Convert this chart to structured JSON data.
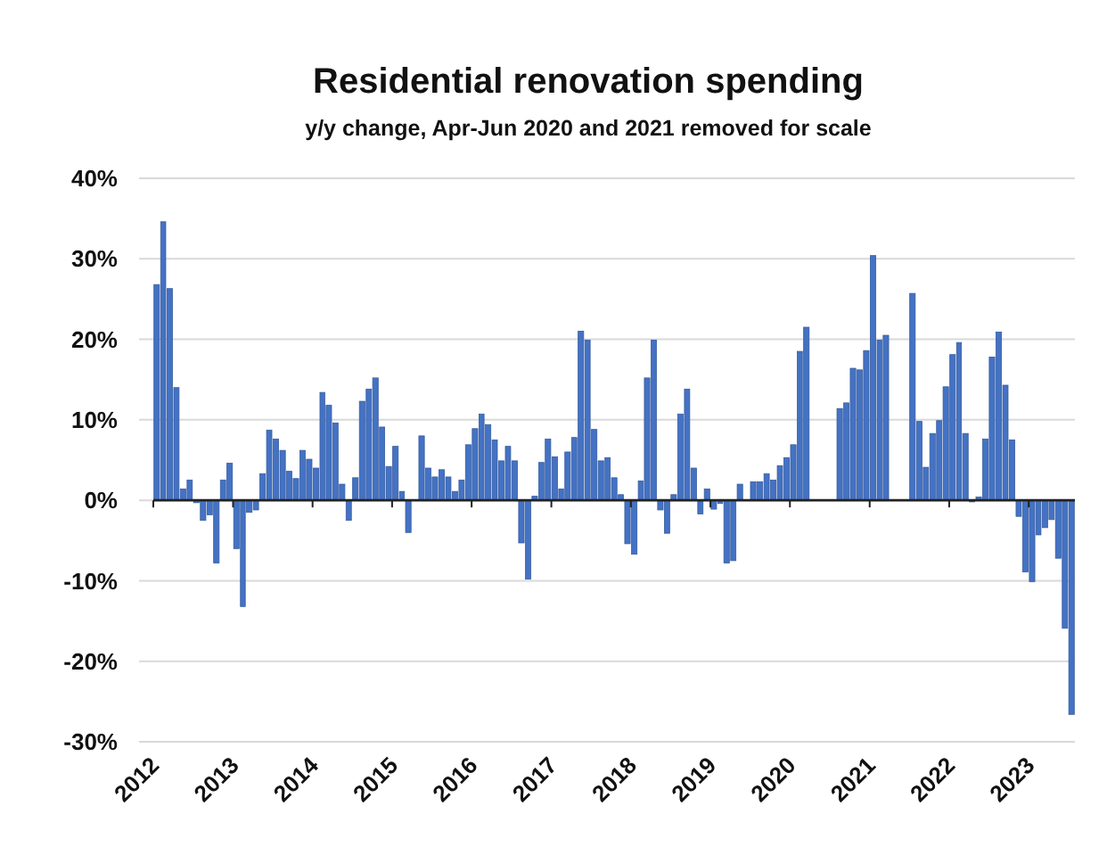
{
  "chart_data": {
    "type": "bar",
    "title": "Residential renovation spending",
    "subtitle": "y/y change, Apr-Jun 2020 and 2021 removed for scale",
    "x": [
      "2012-01",
      "2012-02",
      "2012-03",
      "2012-04",
      "2012-05",
      "2012-06",
      "2012-07",
      "2012-08",
      "2012-09",
      "2012-10",
      "2012-11",
      "2012-12",
      "2013-01",
      "2013-02",
      "2013-03",
      "2013-04",
      "2013-05",
      "2013-06",
      "2013-07",
      "2013-08",
      "2013-09",
      "2013-10",
      "2013-11",
      "2013-12",
      "2014-01",
      "2014-02",
      "2014-03",
      "2014-04",
      "2014-05",
      "2014-06",
      "2014-07",
      "2014-08",
      "2014-09",
      "2014-10",
      "2014-11",
      "2014-12",
      "2015-01",
      "2015-02",
      "2015-03",
      "2015-04",
      "2015-05",
      "2015-06",
      "2015-07",
      "2015-08",
      "2015-09",
      "2015-10",
      "2015-11",
      "2015-12",
      "2016-01",
      "2016-02",
      "2016-03",
      "2016-04",
      "2016-05",
      "2016-06",
      "2016-07",
      "2016-08",
      "2016-09",
      "2016-10",
      "2016-11",
      "2016-12",
      "2017-01",
      "2017-02",
      "2017-03",
      "2017-04",
      "2017-05",
      "2017-06",
      "2017-07",
      "2017-08",
      "2017-09",
      "2017-10",
      "2017-11",
      "2017-12",
      "2018-01",
      "2018-02",
      "2018-03",
      "2018-04",
      "2018-05",
      "2018-06",
      "2018-07",
      "2018-08",
      "2018-09",
      "2018-10",
      "2018-11",
      "2018-12",
      "2019-01",
      "2019-02",
      "2019-03",
      "2019-04",
      "2019-05",
      "2019-06",
      "2019-07",
      "2019-08",
      "2019-09",
      "2019-10",
      "2019-11",
      "2019-12",
      "2020-01",
      "2020-02",
      "2020-03",
      "2020-04",
      "2020-05",
      "2020-06",
      "2020-07",
      "2020-08",
      "2020-09",
      "2020-10",
      "2020-11",
      "2020-12",
      "2021-01",
      "2021-02",
      "2021-03",
      "2021-04",
      "2021-05",
      "2021-06",
      "2021-07",
      "2021-08",
      "2021-09",
      "2021-10",
      "2021-11",
      "2021-12",
      "2022-01",
      "2022-02",
      "2022-03",
      "2022-04",
      "2022-05",
      "2022-06",
      "2022-07",
      "2022-08",
      "2022-09",
      "2022-10",
      "2022-11",
      "2022-12",
      "2023-01",
      "2023-02",
      "2023-03",
      "2023-04",
      "2023-05",
      "2023-06",
      "2023-07"
    ],
    "values": [
      26.8,
      34.6,
      26.3,
      14.0,
      1.4,
      2.5,
      -0.3,
      -2.5,
      -1.8,
      -7.8,
      2.5,
      4.6,
      -6.0,
      -13.2,
      -1.5,
      -1.2,
      3.3,
      8.7,
      7.6,
      6.2,
      3.6,
      2.7,
      6.2,
      5.1,
      4.0,
      13.4,
      11.8,
      9.6,
      2.0,
      -2.5,
      2.8,
      12.3,
      13.8,
      15.2,
      9.1,
      4.2,
      6.7,
      1.1,
      -4.0,
      null,
      8.0,
      4.0,
      2.9,
      3.8,
      2.9,
      1.1,
      2.5,
      6.9,
      8.9,
      10.7,
      9.4,
      7.5,
      4.9,
      6.7,
      4.9,
      -5.3,
      -9.8,
      0.5,
      4.7,
      7.6,
      5.4,
      1.4,
      6.0,
      7.8,
      21.0,
      19.9,
      8.8,
      4.9,
      5.3,
      2.8,
      0.7,
      -5.4,
      -6.7,
      2.4,
      15.2,
      19.9,
      -1.2,
      -4.1,
      0.7,
      10.7,
      13.8,
      4.0,
      -1.7,
      1.4,
      -1.1,
      -0.4,
      -7.8,
      -7.5,
      2.0,
      null,
      2.3,
      2.3,
      3.3,
      2.5,
      4.3,
      5.3,
      6.9,
      18.5,
      21.5,
      null,
      null,
      null,
      null,
      11.4,
      12.1,
      16.4,
      16.2,
      18.6,
      30.4,
      19.9,
      20.5,
      null,
      null,
      null,
      25.7,
      9.8,
      4.1,
      8.3,
      9.9,
      14.1,
      18.1,
      19.6,
      8.3,
      -0.2,
      0.4,
      7.6,
      17.8,
      20.9,
      14.3,
      7.5,
      -2.0,
      -8.9,
      -10.1,
      -4.3,
      -3.4,
      -2.4,
      -7.2,
      -15.9,
      -26.6
    ],
    "color": "#4472c4",
    "xlim": [
      "2012-01",
      "2023-08"
    ],
    "xticks": [
      {
        "value": "2012-01",
        "label": "2012"
      },
      {
        "value": "2013-01",
        "label": "2013"
      },
      {
        "value": "2014-01",
        "label": "2014"
      },
      {
        "value": "2015-01",
        "label": "2015"
      },
      {
        "value": "2016-01",
        "label": "2016"
      },
      {
        "value": "2017-01",
        "label": "2017"
      },
      {
        "value": "2018-01",
        "label": "2018"
      },
      {
        "value": "2019-01",
        "label": "2019"
      },
      {
        "value": "2020-01",
        "label": "2020"
      },
      {
        "value": "2021-01",
        "label": "2021"
      },
      {
        "value": "2022-01",
        "label": "2022"
      },
      {
        "value": "2023-01",
        "label": "2023"
      }
    ],
    "ylim": [
      -30,
      40
    ],
    "yticks": [
      {
        "value": -30,
        "label": "-30%"
      },
      {
        "value": -20,
        "label": "-20%"
      },
      {
        "value": -10,
        "label": "-10%"
      },
      {
        "value": 0,
        "label": "0%"
      },
      {
        "value": 10,
        "label": "10%"
      },
      {
        "value": 20,
        "label": "20%"
      },
      {
        "value": 30,
        "label": "30%"
      },
      {
        "value": 40,
        "label": "40%"
      }
    ],
    "grid": "y"
  }
}
